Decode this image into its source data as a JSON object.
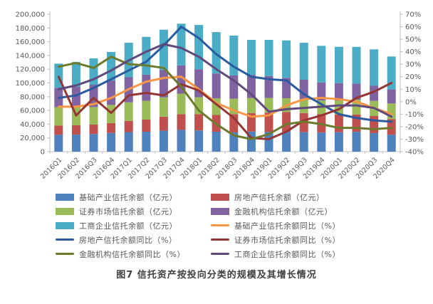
{
  "figure": {
    "caption": "图7  信托资产按投向分类的规模及其增长情况"
  },
  "chart_data": {
    "type": "bar",
    "subtype": "stacked-bar-with-lines-dual-axis",
    "categories": [
      "2016Q1",
      "2016Q2",
      "2016Q3",
      "2016Q4",
      "2017Q1",
      "2017Q2",
      "2017Q3",
      "2017Q4",
      "2018Q1",
      "2018Q2",
      "2018Q3",
      "2018Q4",
      "2019Q1",
      "2019Q2",
      "2019Q3",
      "2019Q4",
      "2020Q1",
      "2020Q2",
      "2020Q3",
      "2020Q4"
    ],
    "left_axis": {
      "min": 0,
      "max": 200000,
      "step": 20000,
      "side": "left"
    },
    "right_axis": {
      "min": -40,
      "max": 70,
      "step": 10,
      "unit": "%",
      "side": "right"
    },
    "grid": false,
    "legend_position": "bottom",
    "bar_series": [
      {
        "name": "基础产业信托余额（亿元）",
        "color": "#4F81BD",
        "values": [
          24500,
          24800,
          25600,
          27200,
          28500,
          29000,
          30500,
          31700,
          30900,
          29000,
          28000,
          29200,
          28800,
          28900,
          28400,
          27800,
          28300,
          28900,
          27000,
          24700
        ]
      },
      {
        "name": "房地产信托余额（亿元）",
        "color": "#C0504D",
        "values": [
          13300,
          13600,
          13800,
          14300,
          16300,
          17700,
          20400,
          22800,
          23700,
          24400,
          26600,
          26900,
          28000,
          28600,
          27800,
          27000,
          25800,
          25200,
          24800,
          22800
        ]
      },
      {
        "name": "证券市场信托余额（亿元）",
        "color": "#9BBB59",
        "values": [
          27000,
          26000,
          25500,
          26500,
          27000,
          27300,
          28100,
          29900,
          24700,
          24100,
          22500,
          22000,
          21300,
          20200,
          20400,
          19600,
          20500,
          21500,
          22100,
          22600
        ]
      },
      {
        "name": "金融机构信托余额（亿元）",
        "color": "#8064A2",
        "values": [
          28300,
          30000,
          32500,
          35500,
          36500,
          38000,
          40000,
          41100,
          40500,
          36300,
          33800,
          33700,
          31900,
          29700,
          28100,
          26400,
          25200,
          23500,
          22000,
          20500
        ]
      },
      {
        "name": "工商企业信托余额（亿元）",
        "color": "#4BACC6",
        "values": [
          35000,
          36100,
          38300,
          41600,
          50200,
          55100,
          58500,
          60700,
          64600,
          60200,
          58000,
          50900,
          52700,
          54500,
          53800,
          53200,
          52800,
          53400,
          53000,
          47900
        ]
      }
    ],
    "line_series": [
      {
        "name": "基础产业信托余额同比（%）",
        "color": "#F79646",
        "values": [
          -4,
          -4,
          -2,
          3,
          10,
          16,
          19,
          20,
          10,
          -1,
          -7,
          -12,
          -11,
          -3,
          2,
          3,
          2,
          0,
          -5,
          -10
        ]
      },
      {
        "name": "房地产信托余额同比（%）",
        "color": "#2B5B9E",
        "values": [
          3,
          5,
          11,
          18,
          25,
          32,
          45,
          60,
          51,
          38,
          28,
          20,
          18,
          17,
          6,
          -2,
          -10,
          -13,
          -15,
          -16
        ]
      },
      {
        "name": "证券市场信托余额同比（%）",
        "color": "#943634",
        "values": [
          20,
          -11,
          3,
          -9,
          5,
          7,
          5,
          14,
          9,
          -2,
          -13,
          -29,
          -30,
          -24,
          -15,
          -11,
          -6,
          3,
          8,
          15
        ]
      },
      {
        "name": "金融机构信托余额同比（%）",
        "color": "#6B7A2D",
        "values": [
          28,
          31,
          27,
          36,
          30,
          29,
          27,
          12,
          -7,
          -18,
          -27,
          -30,
          -26,
          -18,
          -16,
          -18,
          -21,
          -21,
          -22,
          -21
        ]
      },
      {
        "name": "工商企业信托余额同比（%）",
        "color": "#604A7B",
        "values": [
          10,
          13,
          18,
          25,
          33,
          40,
          46,
          43,
          36,
          26,
          17,
          6,
          -8,
          -6,
          -5,
          -4,
          -3,
          -3,
          -5,
          -12
        ]
      }
    ],
    "axis_label_color": "#595959",
    "axis_line_color": "#BFBFBF"
  }
}
